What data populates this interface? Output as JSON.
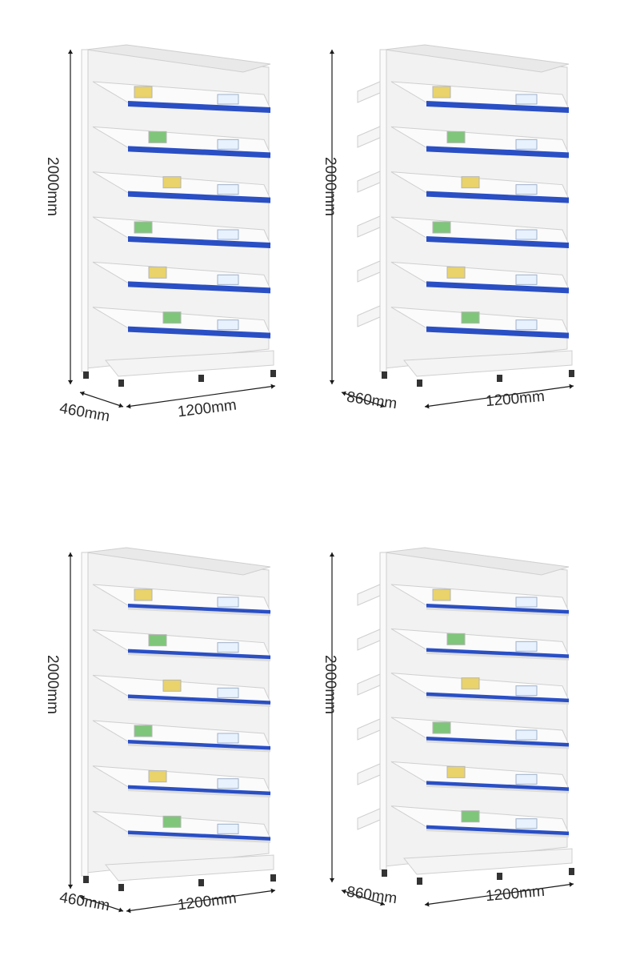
{
  "panels": [
    {
      "name": "single-sided-tilted-shelf",
      "height_label": "2000mm",
      "depth_label": "460mm",
      "width_label": "1200mm",
      "double": false,
      "dividers": false
    },
    {
      "name": "double-sided-tilted-shelf",
      "height_label": "2000mm",
      "depth_label": "860mm",
      "width_label": "1200mm",
      "double": true,
      "dividers": false
    },
    {
      "name": "single-sided-divider-shelf",
      "height_label": "2000mm",
      "depth_label": "460mm",
      "width_label": "1200mm",
      "double": false,
      "dividers": true
    },
    {
      "name": "double-sided-divider-shelf",
      "height_label": "2000mm",
      "depth_label": "860mm",
      "width_label": "1200mm",
      "double": true,
      "dividers": true
    }
  ],
  "colors": {
    "frame": "#f2f2f2",
    "frame_edge": "#cfcfcf",
    "shelf_lip": "#2a4fc4",
    "arrow": "#1a1a1a",
    "box_green": "#7fc67a",
    "box_yellow": "#e9d36a"
  }
}
